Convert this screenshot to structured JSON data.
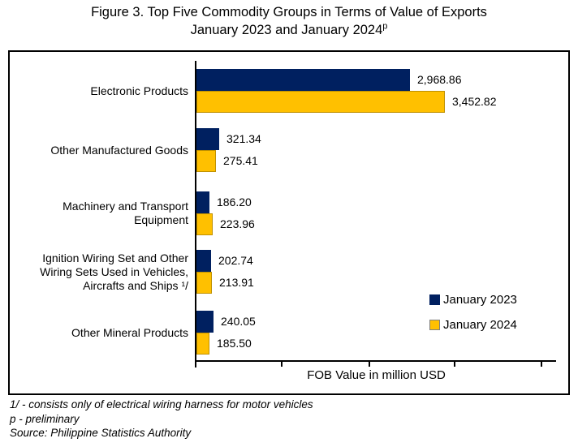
{
  "title": {
    "line1": "Figure 3. Top Five Commodity Groups in Terms of Value of Exports",
    "line2": "January 2023 and January 2024",
    "superscript": "p"
  },
  "colors": {
    "series_2023": "#002060",
    "series_2024": "#FFC000",
    "series_2024_border": "#BF9000",
    "axis": "#000000",
    "frame_border": "#000000",
    "background": "#FFFFFF"
  },
  "chart_data": {
    "type": "bar",
    "orientation": "horizontal",
    "title": "Figure 3. Top Five Commodity Groups in Terms of Value of Exports January 2023 and January 2024p",
    "xlabel": "FOB Value in million USD",
    "ylabel": "",
    "xlim": [
      0,
      5000
    ],
    "x_tick_labels_shown": false,
    "grid": false,
    "legend_position": "inside-lower-right",
    "categories": [
      "Electronic Products",
      "Other Manufactured Goods",
      "Machinery and Transport Equipment",
      "Ignition Wiring Set and Other Wiring Sets Used in Vehicles, Aircrafts and Ships 1/",
      "Other Mineral Products"
    ],
    "category_label_lines": [
      [
        "Electronic Products"
      ],
      [
        "Other Manufactured Goods"
      ],
      [
        "Machinery and Transport",
        "Equipment"
      ],
      [
        "Ignition Wiring Set and Other",
        "Wiring Sets Used in Vehicles,",
        "Aircrafts and Ships ¹/"
      ],
      [
        "Other Mineral Products"
      ]
    ],
    "series": [
      {
        "name": "January 2023",
        "color": "#002060",
        "values": [
          2968.86,
          321.34,
          186.2,
          202.74,
          240.05
        ],
        "labels": [
          "2,968.86",
          "321.34",
          "186.20",
          "202.74",
          "240.05"
        ]
      },
      {
        "name": "January 2024",
        "color": "#FFC000",
        "values": [
          3452.82,
          275.41,
          223.96,
          213.91,
          185.5
        ],
        "labels": [
          "3,452.82",
          "275.41",
          "223.96",
          "213.91",
          "185.50"
        ]
      }
    ]
  },
  "legend": {
    "items": [
      {
        "label": "January 2023",
        "color": "#002060"
      },
      {
        "label": "January 2024",
        "color": "#FFC000"
      }
    ]
  },
  "axis": {
    "x_title": "FOB Value in million USD"
  },
  "footnotes": {
    "line1": "1/ - consists only of electrical wiring harness for motor vehicles",
    "line2": "p - preliminary",
    "line3": "Source: Philippine Statistics Authority"
  }
}
